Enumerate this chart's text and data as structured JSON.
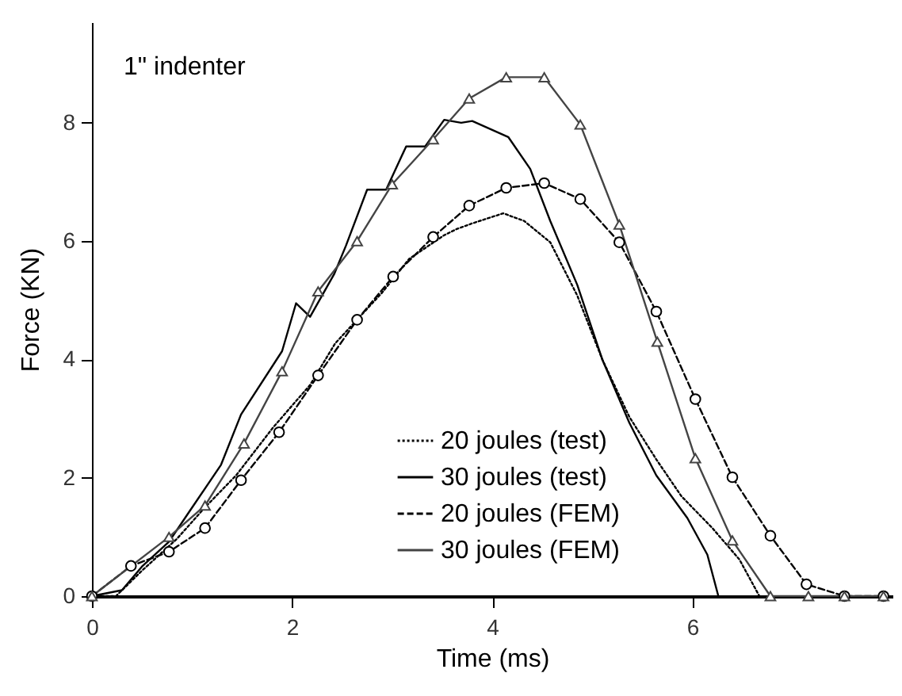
{
  "chart_data": {
    "type": "line",
    "xlabel": "Time (ms)",
    "ylabel": "Force (KN)",
    "annotations": [
      "1\" indenter"
    ],
    "xlim": [
      0,
      8
    ],
    "ylim": [
      0,
      9.7
    ],
    "xticks": [
      0,
      2,
      4,
      6
    ],
    "yticks": [
      0,
      2,
      4,
      6,
      8
    ],
    "grid": false,
    "legend": "bottom",
    "series": [
      {
        "name": "20 joules (test)",
        "color": "#000000",
        "line_style": "dotted",
        "marker": "none",
        "x": [
          0,
          0.24,
          0.5,
          0.85,
          1.13,
          1.44,
          1.81,
          2.18,
          2.43,
          2.9,
          3.17,
          3.52,
          3.64,
          3.8,
          4.11,
          4.32,
          4.58,
          4.85,
          5.1,
          5.37,
          5.64,
          5.89,
          6.2,
          6.47,
          6.67
        ],
        "values": [
          0,
          0,
          0.43,
          0.97,
          1.5,
          2.04,
          2.85,
          3.57,
          4.27,
          5.13,
          5.7,
          6.1,
          6.2,
          6.3,
          6.47,
          6.34,
          5.98,
          5.08,
          4.0,
          3.03,
          2.31,
          1.69,
          1.15,
          0.62,
          0
        ]
      },
      {
        "name": "30 joules (test)",
        "color": "#000000",
        "line_style": "solid",
        "marker": "none",
        "x": [
          0,
          0.3,
          0.5,
          0.77,
          0.97,
          1.29,
          1.49,
          1.9,
          2.04,
          2.18,
          2.42,
          2.54,
          2.75,
          2.94,
          3.14,
          3.33,
          3.52,
          3.69,
          3.8,
          4.16,
          4.38,
          4.58,
          4.85,
          5.1,
          5.37,
          5.64,
          5.95,
          6.15,
          6.26
        ],
        "values": [
          0,
          0.1,
          0.5,
          0.92,
          1.42,
          2.22,
          3.07,
          4.14,
          4.95,
          4.72,
          5.44,
          5.93,
          6.87,
          6.87,
          7.6,
          7.6,
          8.05,
          8.0,
          8.03,
          7.76,
          7.22,
          6.34,
          5.26,
          4.0,
          2.93,
          2.04,
          1.32,
          0.7,
          0
        ]
      },
      {
        "name": "20 joules (FEM)",
        "color": "#000000",
        "line_style": "dashed",
        "marker": "circle",
        "x": [
          0,
          0.39,
          0.77,
          1.13,
          1.49,
          1.87,
          2.26,
          2.65,
          3.01,
          3.41,
          3.77,
          4.14,
          4.52,
          4.88,
          5.27,
          5.64,
          6.03,
          6.4,
          6.78,
          7.14,
          7.52,
          7.91
        ],
        "values": [
          0,
          0.51,
          0.75,
          1.15,
          1.96,
          2.77,
          3.73,
          4.67,
          5.4,
          6.07,
          6.6,
          6.9,
          6.98,
          6.71,
          5.98,
          4.81,
          3.33,
          2.01,
          1.02,
          0.2,
          0,
          0
        ]
      },
      {
        "name": "30 joules (FEM)",
        "color": "#444444",
        "line_style": "solid",
        "marker": "triangle",
        "x": [
          0,
          0.77,
          1.13,
          1.52,
          1.9,
          2.26,
          2.65,
          3.0,
          3.41,
          3.77,
          4.14,
          4.52,
          4.88,
          5.27,
          5.65,
          6.03,
          6.4,
          6.78,
          7.16,
          7.52,
          7.91
        ],
        "values": [
          0,
          1.0,
          1.53,
          2.58,
          3.8,
          5.15,
          6.0,
          6.96,
          7.72,
          8.41,
          8.77,
          8.77,
          7.97,
          6.28,
          4.3,
          2.33,
          0.94,
          0,
          0,
          0,
          0
        ]
      }
    ]
  }
}
